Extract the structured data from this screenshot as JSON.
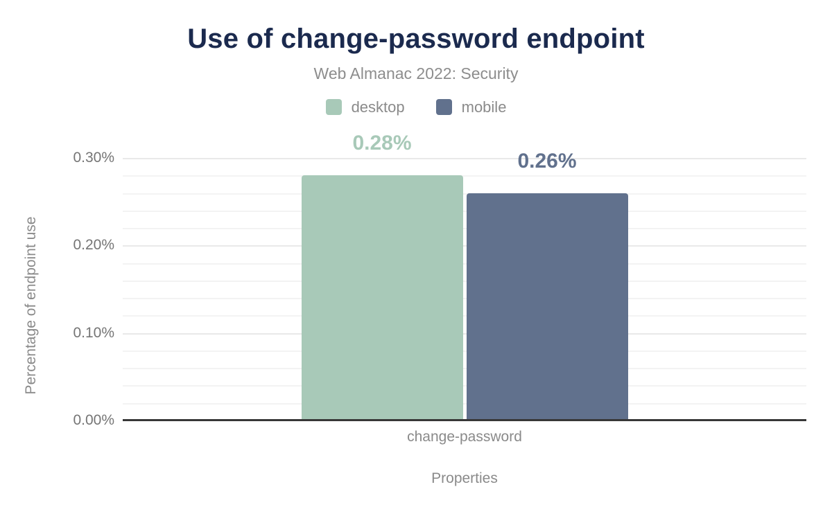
{
  "chart_data": {
    "type": "bar",
    "title": "Use of change-password endpoint",
    "subtitle": "Web Almanac 2022: Security",
    "categories": [
      "change-password"
    ],
    "series": [
      {
        "name": "desktop",
        "color": "#a8c9b8",
        "values": [
          0.28
        ],
        "data_labels": [
          "0.28%"
        ]
      },
      {
        "name": "mobile",
        "color": "#61718d",
        "values": [
          0.26
        ],
        "data_labels": [
          "0.26%"
        ]
      }
    ],
    "xlabel": "Properties",
    "ylabel": "Percentage of endpoint use",
    "ylim": [
      0,
      0.3
    ],
    "y_major_step": 0.1,
    "y_minor_step": 0.02,
    "y_tick_labels": [
      "0.00%",
      "0.10%",
      "0.20%",
      "0.30%"
    ],
    "grid": true,
    "legend_position": "top"
  },
  "colors": {
    "background": "#ffffff",
    "title": "#1b2a4e",
    "subtitle": "#8d8d8d",
    "axis_text": "#757575",
    "category_text": "#8a8a8a",
    "axis_line": "#373737",
    "grid_major": "#e9e9e9",
    "grid_minor": "#f3f3f3",
    "desktop": "#a8c9b8",
    "mobile": "#61718d"
  }
}
